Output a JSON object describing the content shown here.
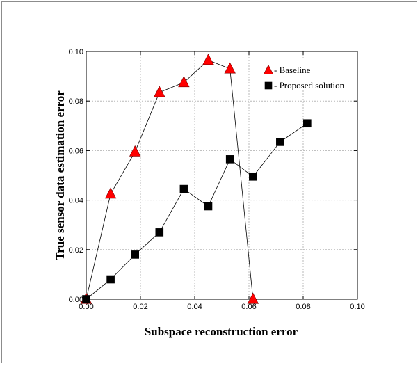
{
  "chart_data": {
    "type": "line",
    "xlabel": "Subspace reconstruction error",
    "ylabel": "True sensor data estimation error",
    "xlim": [
      0.0,
      0.1
    ],
    "ylim": [
      0.0,
      0.1
    ],
    "x_ticks": [
      "0.00",
      "0.02",
      "0.04",
      "0.06",
      "0.08",
      "0.10"
    ],
    "y_ticks": [
      "0.00",
      "0.02",
      "0.04",
      "0.06",
      "0.08",
      "0.10"
    ],
    "x_tick_values": [
      0.0,
      0.02,
      0.04,
      0.06,
      0.08,
      0.1
    ],
    "y_tick_values": [
      0.0,
      0.02,
      0.04,
      0.06,
      0.08,
      0.1
    ],
    "grid": true,
    "legend_position": "top-right",
    "series": [
      {
        "name": "Baseline",
        "marker": "triangle",
        "color": "#ff0000",
        "x": [
          0.0,
          0.009,
          0.018,
          0.027,
          0.036,
          0.045,
          0.053,
          0.0615
        ],
        "y": [
          0.0,
          0.0425,
          0.0595,
          0.0835,
          0.0875,
          0.0965,
          0.093,
          0.0
        ]
      },
      {
        "name": "Proposed solution",
        "marker": "square",
        "color": "#000000",
        "x": [
          0.0,
          0.009,
          0.018,
          0.027,
          0.036,
          0.045,
          0.053,
          0.0615,
          0.0715,
          0.0815
        ],
        "y": [
          0.0,
          0.008,
          0.018,
          0.027,
          0.0445,
          0.0375,
          0.0565,
          0.0495,
          0.0635,
          0.071
        ]
      }
    ]
  }
}
